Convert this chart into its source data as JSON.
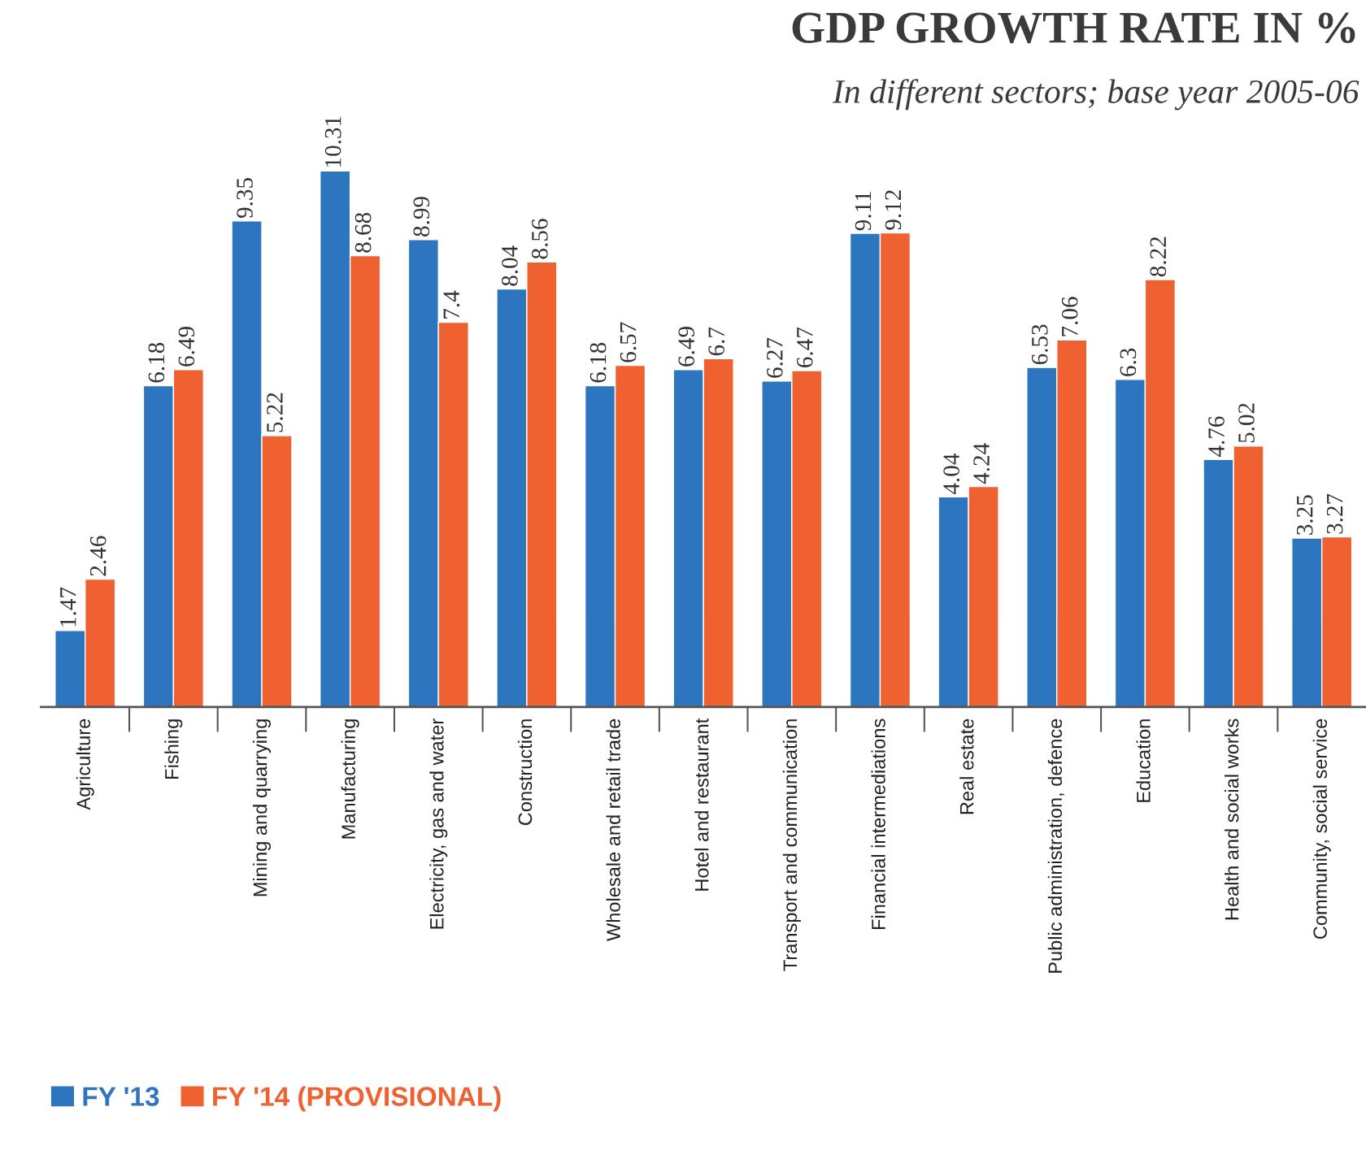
{
  "chart_data": {
    "type": "bar",
    "title": "GDP GROWTH RATE IN %",
    "subtitle": "In different sectors; base year 2005-06",
    "categories": [
      "Agriculture",
      "Fishing",
      "Mining and quarrying",
      "Manufacturing",
      "Electricity, gas and water",
      "Construction",
      "Wholesale and retail trade",
      "Hotel and restaurant",
      "Transport and communication",
      "Financial intermediations",
      "Real estate",
      "Public administration, defence",
      "Education",
      "Health and social works",
      "Community, social service"
    ],
    "series": [
      {
        "name": "FY '13",
        "color": "#2e75c0",
        "values": [
          1.47,
          6.18,
          9.35,
          10.31,
          8.99,
          8.04,
          6.18,
          6.49,
          6.27,
          9.11,
          4.04,
          6.53,
          6.3,
          4.76,
          3.25
        ]
      },
      {
        "name": "FY '14 (PROVISIONAL)",
        "color": "#ef6131",
        "values": [
          2.46,
          6.49,
          5.22,
          8.68,
          7.4,
          8.56,
          6.57,
          6.7,
          6.47,
          9.12,
          4.24,
          7.06,
          8.22,
          5.02,
          3.27
        ]
      }
    ],
    "data_labels": true,
    "legend": "bottom left",
    "grid": false
  }
}
